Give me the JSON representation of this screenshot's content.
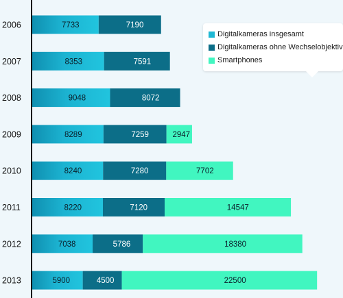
{
  "chart_data": {
    "type": "bar",
    "orientation": "horizontal",
    "stacked": true,
    "categories": [
      "2006",
      "2007",
      "2008",
      "2009",
      "2010",
      "2011",
      "2012",
      "2013"
    ],
    "series": [
      {
        "name": "Digitalkameras insgesamt",
        "color": "#1fb8d4",
        "values": [
          7733,
          8353,
          9048,
          8289,
          8240,
          8220,
          7038,
          5900
        ]
      },
      {
        "name": "Digitalkameras ohne Wechselobjektiv",
        "color": "#0c6e88",
        "values": [
          7190,
          7591,
          8072,
          7259,
          7280,
          7120,
          5786,
          4500
        ]
      },
      {
        "name": "Smartphones",
        "color": "#41f6c0",
        "values": [
          null,
          null,
          null,
          2947,
          7702,
          14547,
          18380,
          22500
        ]
      }
    ],
    "title": "",
    "xlabel": "",
    "ylabel": "",
    "legend": "top-right",
    "grid": false
  }
}
